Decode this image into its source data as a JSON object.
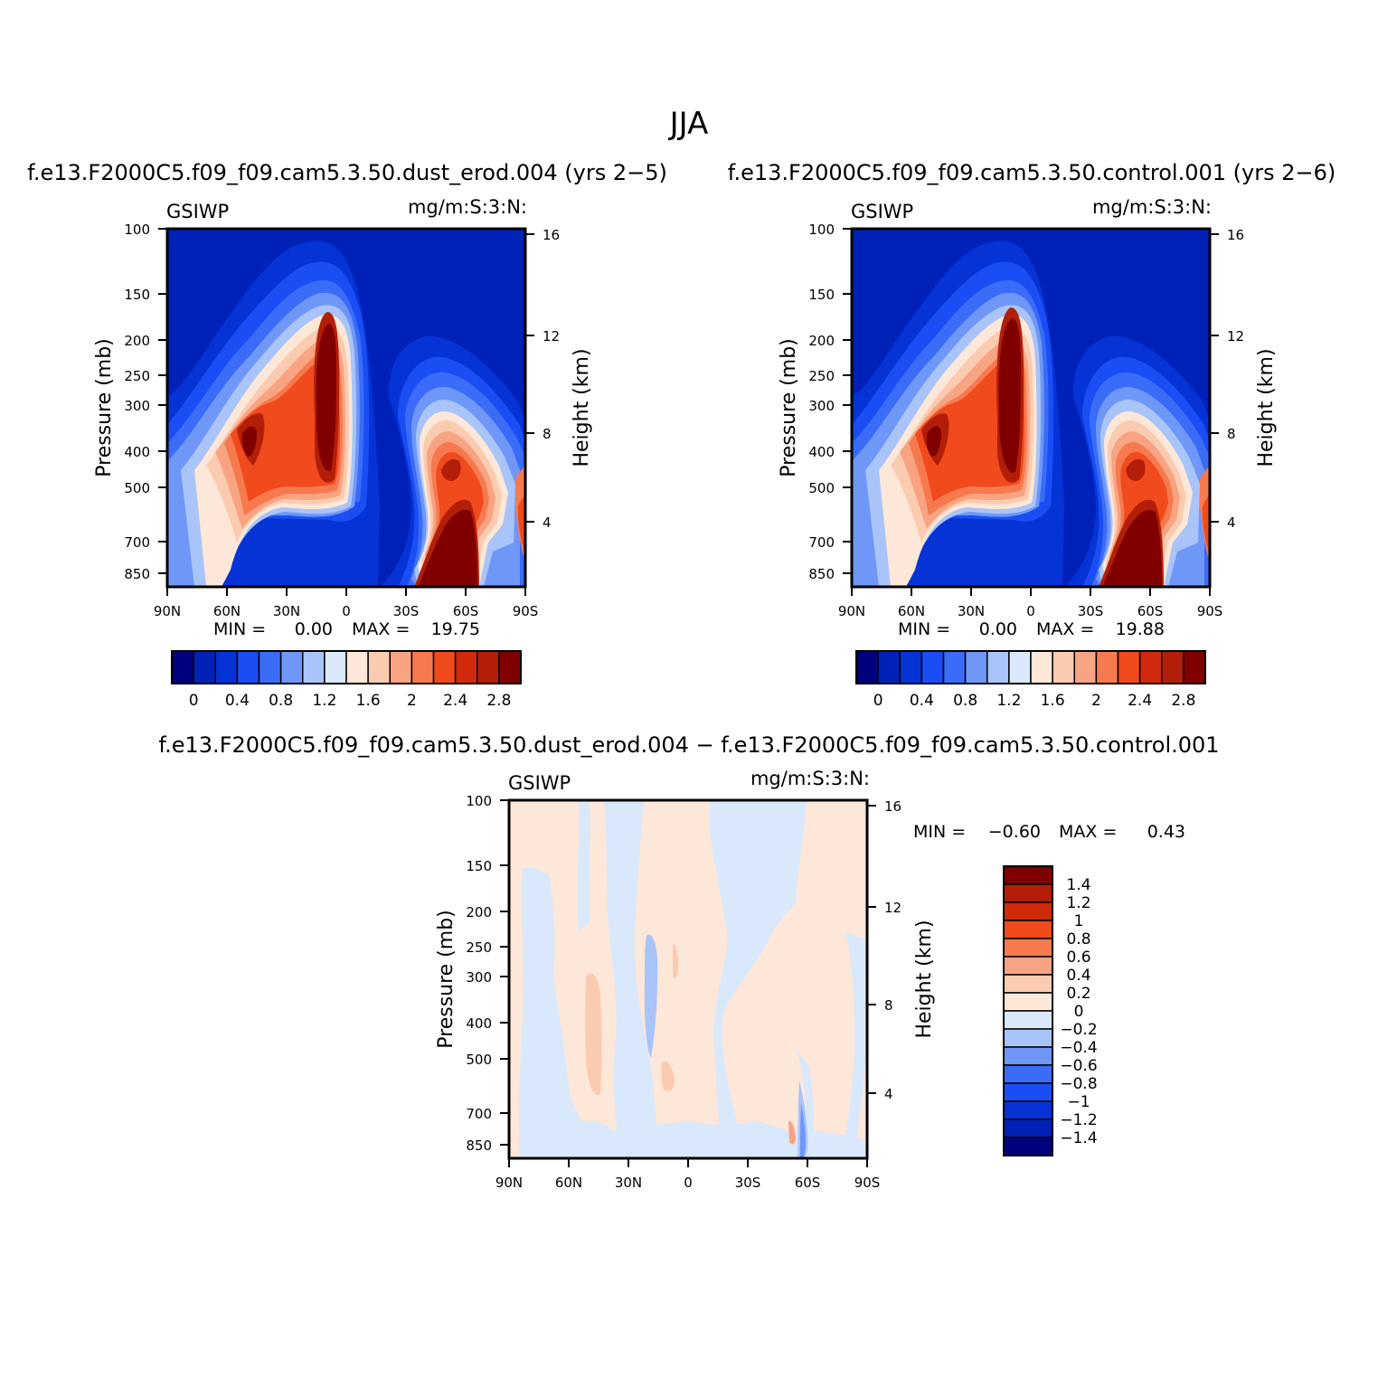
{
  "page_title": "JJA",
  "chart_data": [
    {
      "type": "heatmap",
      "id": "dust_erod",
      "title": "f.e13.F2000C5.f09_f09.cam5.3.50.dust_erod.004 (yrs 2−5)",
      "left_string": "GSIWP",
      "right_string": "mg/m:S:3:N:",
      "ylabel": "Pressure (mb)",
      "ylabel_right": "Height (km)",
      "x_ticks": [
        "90N",
        "60N",
        "30N",
        "0",
        "30S",
        "60S",
        "90S"
      ],
      "y_ticks": [
        "100",
        "150",
        "200",
        "250",
        "300",
        "400",
        "500",
        "700",
        "850"
      ],
      "y_ticks_right": [
        "16",
        "12",
        "8",
        "4"
      ],
      "min_label": "MIN =",
      "min_value": "0.00",
      "max_label": "MAX =",
      "max_value": "19.75",
      "colorbar_levels": [
        "0",
        "0.4",
        "0.8",
        "1.2",
        "1.6",
        "2",
        "2.4",
        "2.8"
      ]
    },
    {
      "type": "heatmap",
      "id": "control",
      "title": "f.e13.F2000C5.f09_f09.cam5.3.50.control.001 (yrs 2−6)",
      "left_string": "GSIWP",
      "right_string": "mg/m:S:3:N:",
      "ylabel": "Pressure (mb)",
      "ylabel_right": "Height (km)",
      "x_ticks": [
        "90N",
        "60N",
        "30N",
        "0",
        "30S",
        "60S",
        "90S"
      ],
      "y_ticks": [
        "100",
        "150",
        "200",
        "250",
        "300",
        "400",
        "500",
        "700",
        "850"
      ],
      "y_ticks_right": [
        "16",
        "12",
        "8",
        "4"
      ],
      "min_label": "MIN =",
      "min_value": "0.00",
      "max_label": "MAX =",
      "max_value": "19.88",
      "colorbar_levels": [
        "0",
        "0.4",
        "0.8",
        "1.2",
        "1.6",
        "2",
        "2.4",
        "2.8"
      ]
    },
    {
      "type": "heatmap",
      "id": "difference",
      "title": "f.e13.F2000C5.f09_f09.cam5.3.50.dust_erod.004 − f.e13.F2000C5.f09_f09.cam5.3.50.control.001",
      "left_string": "GSIWP",
      "right_string": "mg/m:S:3:N:",
      "ylabel": "Pressure (mb)",
      "ylabel_right": "Height (km)",
      "x_ticks": [
        "90N",
        "60N",
        "30N",
        "0",
        "30S",
        "60S",
        "90S"
      ],
      "y_ticks": [
        "100",
        "150",
        "200",
        "250",
        "300",
        "400",
        "500",
        "700",
        "850"
      ],
      "y_ticks_right": [
        "16",
        "12",
        "8",
        "4"
      ],
      "min_label": "MIN =",
      "min_value": "−0.60",
      "max_label": "MAX =",
      "max_value": "0.43",
      "colorbar_levels": [
        "1.4",
        "1.2",
        "1",
        "0.8",
        "0.6",
        "0.4",
        "0.2",
        "0",
        "−0.2",
        "−0.4",
        "−0.6",
        "−0.8",
        "−1",
        "−1.2",
        "−1.4"
      ]
    }
  ],
  "colors": {
    "colorbar_main": [
      "#00007f",
      "#0021b8",
      "#0533d6",
      "#1a4ef4",
      "#3a6cf8",
      "#6f97f8",
      "#a9c4f8",
      "#d9e8fb",
      "#fde7d8",
      "#fbcbb0",
      "#f8a382",
      "#f77a4f",
      "#f04a1d",
      "#d1290b",
      "#b31e08",
      "#800000"
    ],
    "colorbar_diff": [
      "#800000",
      "#b31e08",
      "#d1290b",
      "#f04a1d",
      "#f77a4f",
      "#f8a382",
      "#fbcbb0",
      "#fde7d8",
      "#d9e8fb",
      "#a9c4f8",
      "#6f97f8",
      "#3a6cf8",
      "#1a4ef4",
      "#0533d6",
      "#0021b8",
      "#00007f"
    ]
  }
}
